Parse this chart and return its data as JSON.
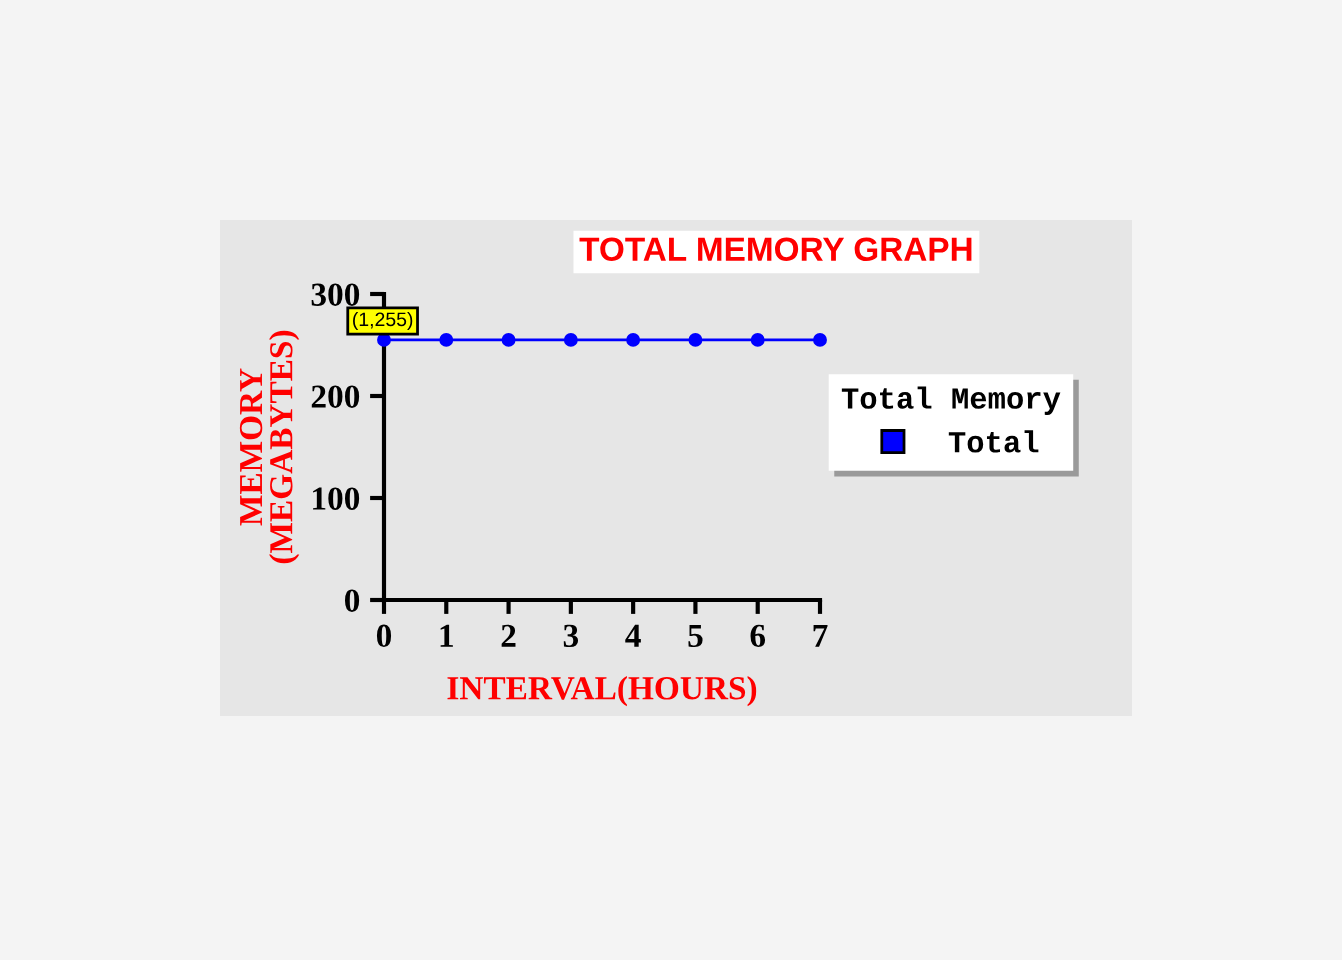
{
  "chart_data": {
    "type": "line",
    "title": "TOTAL MEMORY GRAPH",
    "xlabel": "INTERVAL(HOURS)",
    "ylabel": "MEMORY\n(MEGABYTES)",
    "legend_title": "Total Memory",
    "x": [
      0,
      1,
      2,
      3,
      4,
      5,
      6,
      7
    ],
    "series": [
      {
        "name": "Total",
        "color": "#0000ff",
        "values": [
          255,
          255,
          255,
          255,
          255,
          255,
          255,
          255
        ]
      }
    ],
    "annotations": [
      {
        "text": "(1,255)",
        "x": 1,
        "y": 255
      }
    ],
    "xlim": [
      0,
      7
    ],
    "xticks": [
      0,
      1,
      2,
      3,
      4,
      5,
      6,
      7
    ],
    "ylim": [
      0,
      300
    ],
    "yticks": [
      0,
      100,
      200,
      300
    ],
    "grid": false,
    "legend": "right",
    "marker": "circle",
    "line_style": "solid"
  }
}
